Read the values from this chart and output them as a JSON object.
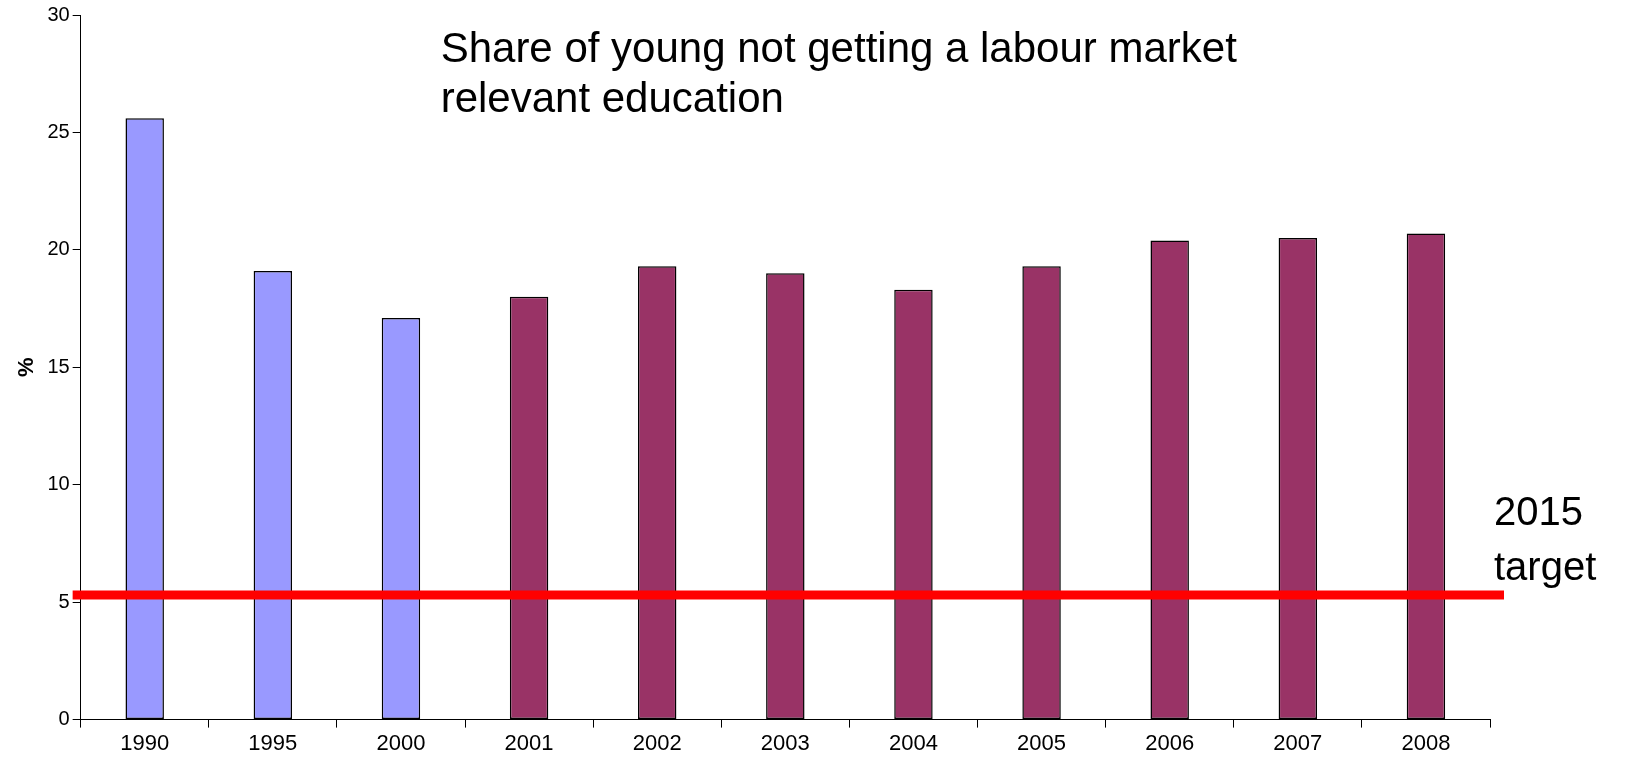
{
  "chart_data": {
    "type": "bar",
    "title": "Share of young not getting a labour market relevant education",
    "ylabel": "%",
    "categories": [
      "1990",
      "1995",
      "2000",
      "2001",
      "2002",
      "2003",
      "2004",
      "2005",
      "2006",
      "2007",
      "2008"
    ],
    "values": [
      25.6,
      19.1,
      17.1,
      18,
      19.3,
      19,
      18.3,
      19.3,
      20.4,
      20.5,
      20.7
    ],
    "colors": [
      "#9999ff",
      "#9999ff",
      "#9999ff",
      "#993366",
      "#993366",
      "#993366",
      "#993366",
      "#993366",
      "#993366",
      "#993366",
      "#993366"
    ],
    "ylim": [
      0,
      30
    ],
    "yticks": [
      0,
      5,
      10,
      15,
      20,
      25,
      30
    ],
    "grid": false,
    "legend": false,
    "ref_lines": [
      {
        "axis": "y",
        "value": 5.3,
        "label": "2015 target",
        "color": "#ff0000"
      }
    ]
  }
}
